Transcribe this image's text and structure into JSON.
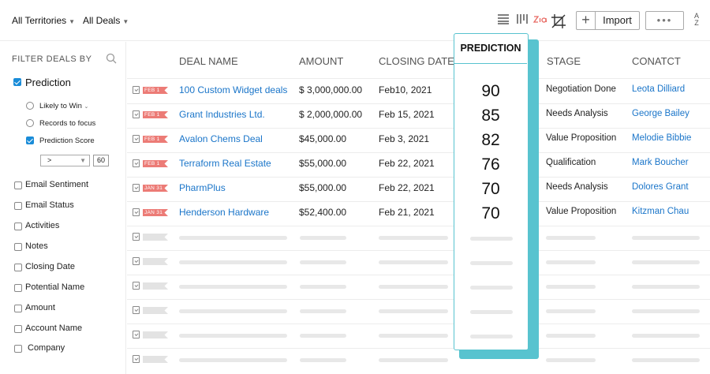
{
  "topbar": {
    "territories": "All Territories",
    "deals": "All Deals",
    "import_label": "Import",
    "more_label": "•••",
    "add_label": "+",
    "sort_label_top": "A",
    "sort_label_bottom": "Z"
  },
  "sidebar": {
    "title": "FILTER DEALS BY",
    "prediction": {
      "label": "Prediction",
      "checked": true,
      "options": [
        {
          "label": "Likely to Win",
          "type": "radio"
        },
        {
          "label": "Records to focus",
          "type": "radio"
        },
        {
          "label": "Prediction Score",
          "type": "checkbox",
          "checked": true
        }
      ],
      "operator": ">",
      "value": "60"
    },
    "filters": [
      "Email Sentiment",
      "Email Status",
      "Activities",
      "Notes",
      "Closing Date",
      "Potential Name",
      "Amount",
      "Account Name",
      "Company"
    ]
  },
  "table": {
    "columns": {
      "deal_name": "DEAL NAME",
      "amount": "AMOUNT",
      "closing_date": "CLOSING DATE",
      "prediction": "PREDICTION",
      "stage": "STAGE",
      "contact": "CONATCT"
    },
    "rows": [
      {
        "flag": "FEB 1",
        "deal": "100 Custom Widget deals",
        "amount": "$ 3,000,000.00",
        "date": "Feb10, 2021",
        "prediction": "90",
        "stage": "Negotiation Done",
        "contact": "Leota Dilliard"
      },
      {
        "flag": "FEB 1",
        "deal": "Grant Industries Ltd.",
        "amount": "$ 2,000,000.00",
        "date": "Feb 15, 2021",
        "prediction": "85",
        "stage": "Needs Analysis",
        "contact": "George Bailey"
      },
      {
        "flag": "FEB 1",
        "deal": "Avalon Chems Deal",
        "amount": "$45,000.00",
        "date": "Feb 3, 2021",
        "prediction": "82",
        "stage": "Value Proposition",
        "contact": "Melodie Bibbie"
      },
      {
        "flag": "FEB 1",
        "deal": "Terraform Real Estate",
        "amount": "$55,000.00",
        "date": "Feb 22, 2021",
        "prediction": "76",
        "stage": "Qualification",
        "contact": "Mark Boucher"
      },
      {
        "flag": "JAN 31",
        "deal": "PharmPlus",
        "amount": "$55,000.00",
        "date": "Feb 22, 2021",
        "prediction": "70",
        "stage": "Needs Analysis",
        "contact": "Dolores Grant"
      },
      {
        "flag": "JAN 31",
        "deal": "Henderson Hardware",
        "amount": "$52,400.00",
        "date": "Feb 21, 2021",
        "prediction": "70",
        "stage": "Value Proposition",
        "contact": "Kitzman Chau"
      }
    ],
    "placeholder_rows": 6
  },
  "colors": {
    "accent": "#58c3cf",
    "link": "#1a75c9",
    "flag": "#ec7b76",
    "checkbox": "#1a8cd8"
  }
}
